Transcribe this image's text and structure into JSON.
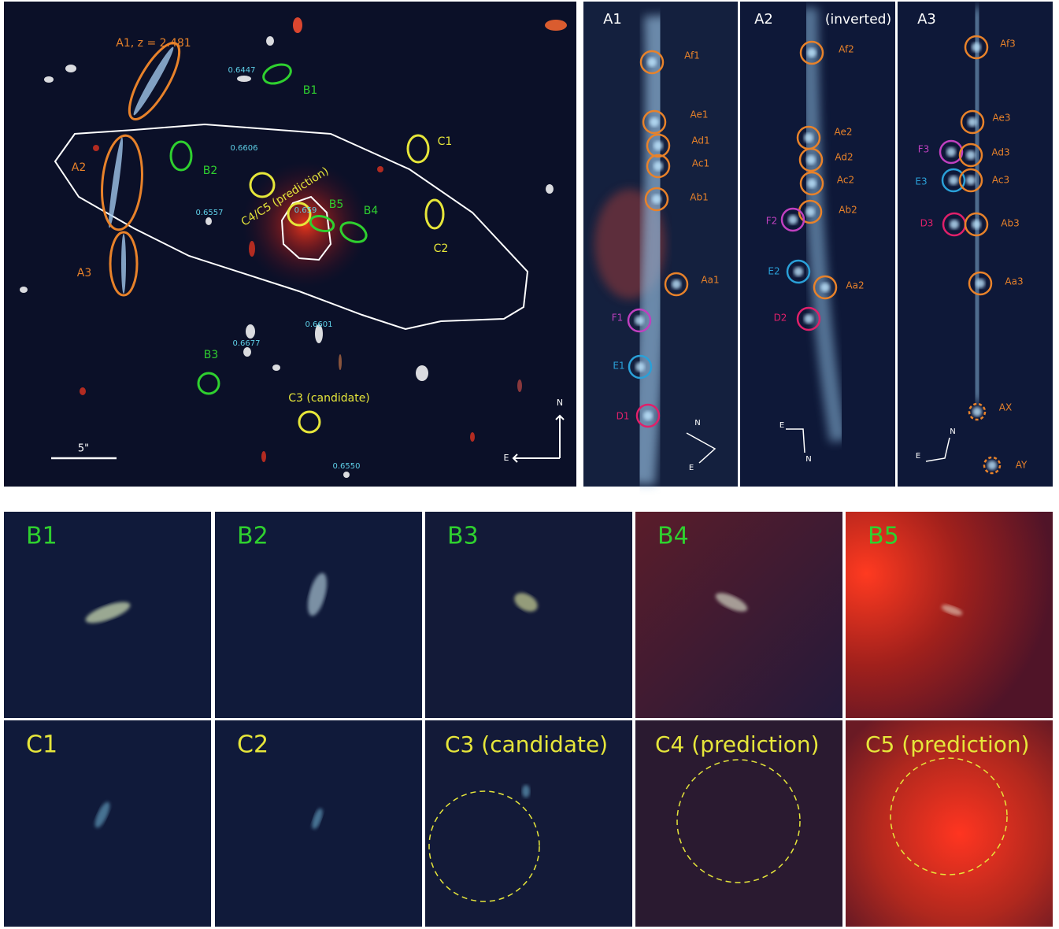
{
  "main_panel": {
    "annotations": [
      "A1, z = 2.481",
      "A2",
      "A3",
      "B1",
      "B2",
      "B3",
      "B4",
      "B5",
      "C1",
      "C2",
      "C3 (candidate)",
      "C4/C5 (prediction)"
    ],
    "redshifts": [
      "0.6447",
      "0.6606",
      "0.6557",
      "0.659",
      "0.6601",
      "0.6677",
      "0.6550"
    ],
    "scale_bar": "5\"",
    "compass": [
      "N",
      "E"
    ]
  },
  "arc_panels": [
    {
      "title": "A1",
      "knots": [
        "Af1",
        "Ae1",
        "Ad1",
        "Ac1",
        "Ab1",
        "Aa1",
        "F1",
        "E1",
        "D1"
      ],
      "compass": [
        "N",
        "E"
      ]
    },
    {
      "title": "A2",
      "note": "(inverted)",
      "knots": [
        "Af2",
        "Ae2",
        "Ad2",
        "Ac2",
        "Ab2",
        "F2",
        "E2",
        "Aa2",
        "D2"
      ],
      "compass": [
        "E",
        "N"
      ]
    },
    {
      "title": "A3",
      "knots": [
        "Af3",
        "Ae3",
        "F3",
        "Ad3",
        "E3",
        "Ac3",
        "D3",
        "Ab3",
        "Aa3",
        "AX",
        "AY"
      ],
      "compass": [
        "N",
        "E"
      ]
    }
  ],
  "cutouts": [
    "B1",
    "B2",
    "B3",
    "B4",
    "B5",
    "C1",
    "C2",
    "C3 (candidate)",
    "C4 (prediction)",
    "C5 (prediction)"
  ]
}
